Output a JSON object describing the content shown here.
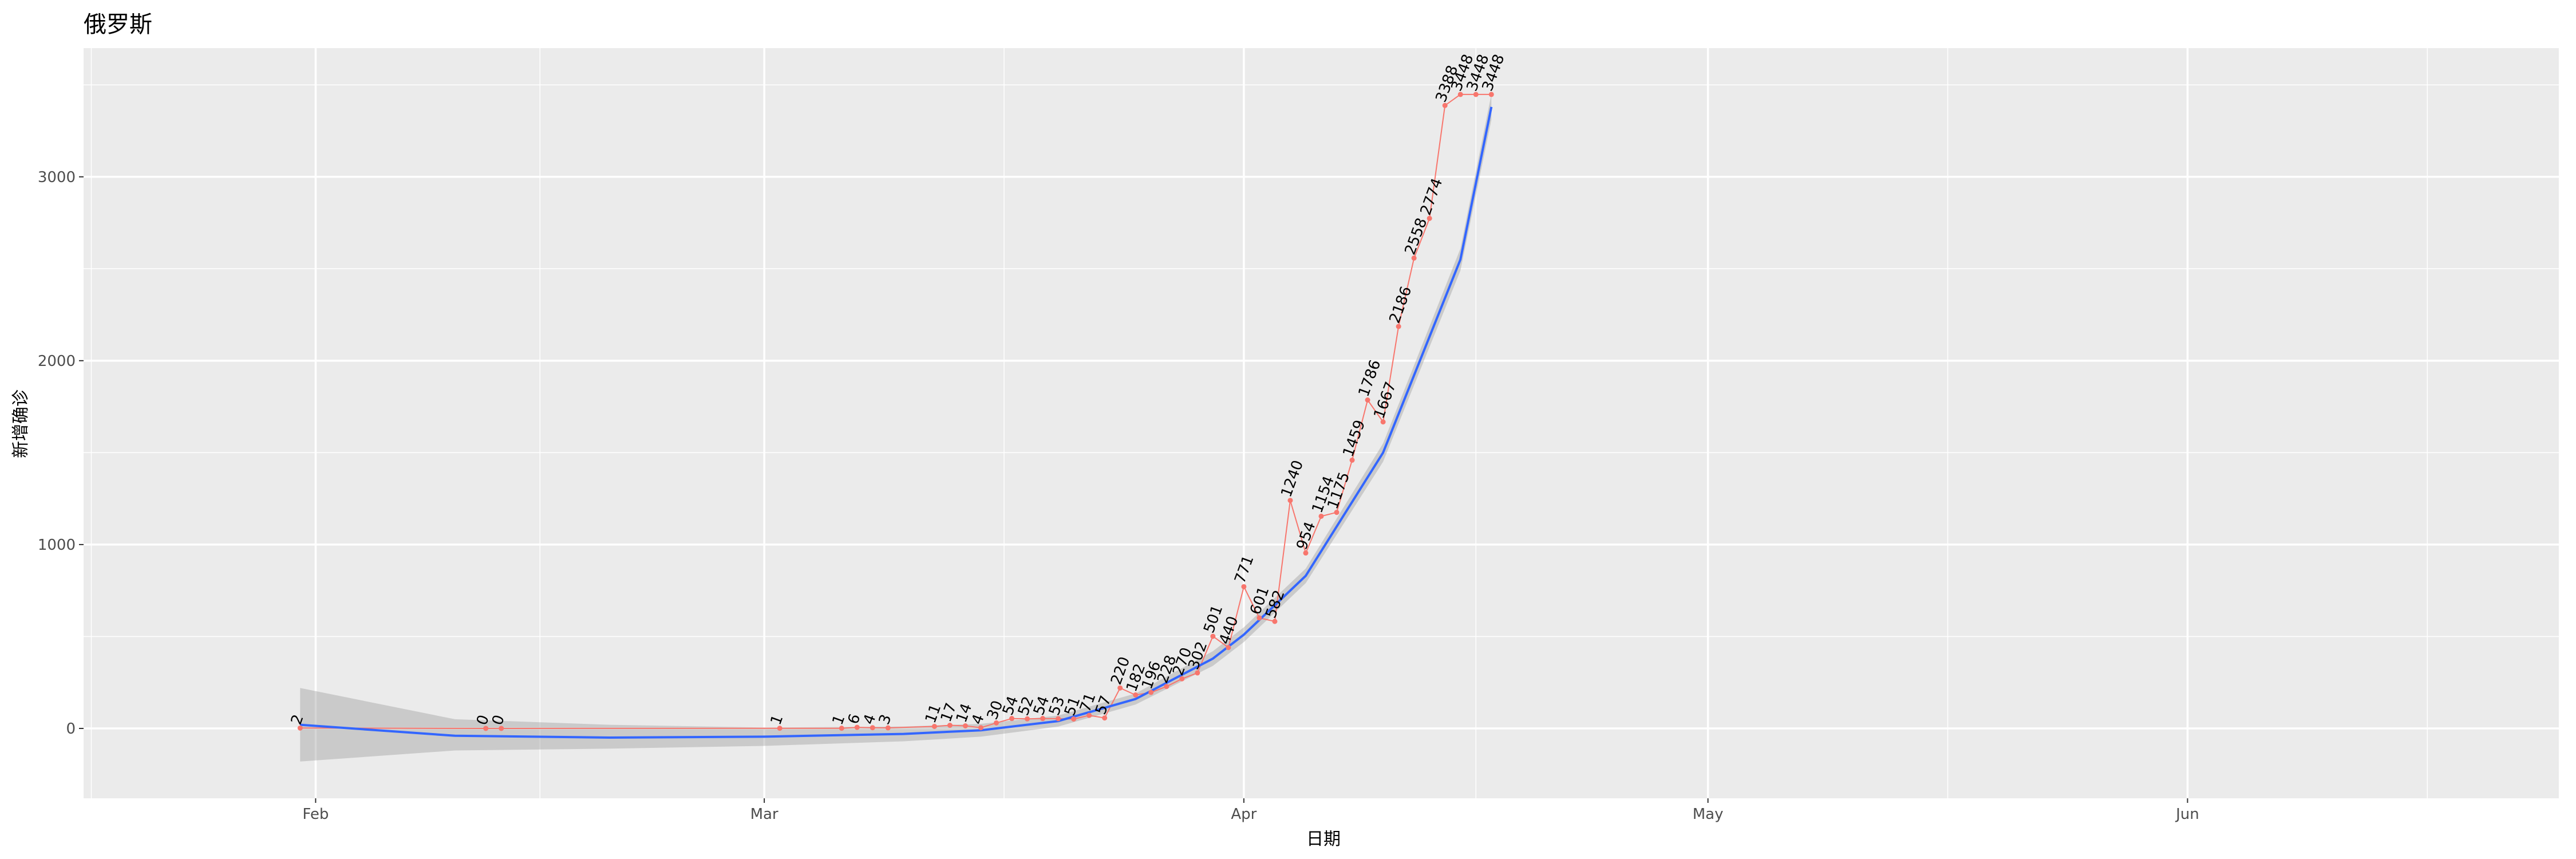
{
  "chart_data": {
    "type": "line",
    "title": "俄罗斯",
    "xlabel": "日期",
    "ylabel": "新增确诊",
    "x_ticks": [
      {
        "date": "2020-02-01",
        "label": "Feb"
      },
      {
        "date": "2020-03-01",
        "label": "Mar"
      },
      {
        "date": "2020-04-01",
        "label": "Apr"
      },
      {
        "date": "2020-05-01",
        "label": "May"
      },
      {
        "date": "2020-06-01",
        "label": "Jun"
      }
    ],
    "y_ticks": [
      0,
      1000,
      2000,
      3000
    ],
    "xlim": [
      "2020-01-17",
      "2020-06-25"
    ],
    "ylim": [
      -380,
      3700
    ],
    "grid": true,
    "series": [
      {
        "color": "#F8766D",
        "x": [
          "2020-01-31",
          "2020-02-12",
          "2020-02-13",
          "2020-03-02",
          "2020-03-06",
          "2020-03-07",
          "2020-03-08",
          "2020-03-09",
          "2020-03-12",
          "2020-03-13",
          "2020-03-14",
          "2020-03-15",
          "2020-03-16",
          "2020-03-17",
          "2020-03-18",
          "2020-03-19",
          "2020-03-20",
          "2020-03-21",
          "2020-03-22",
          "2020-03-23",
          "2020-03-24",
          "2020-03-25",
          "2020-03-26",
          "2020-03-27",
          "2020-03-28",
          "2020-03-29",
          "2020-03-30",
          "2020-03-31",
          "2020-04-01",
          "2020-04-02",
          "2020-04-03",
          "2020-04-04",
          "2020-04-05",
          "2020-04-06",
          "2020-04-07",
          "2020-04-08",
          "2020-04-09",
          "2020-04-10",
          "2020-04-11",
          "2020-04-12",
          "2020-04-13",
          "2020-04-14",
          "2020-04-15",
          "2020-04-16",
          "2020-04-17"
        ],
        "y": [
          2,
          0,
          0,
          1,
          1,
          6,
          4,
          3,
          11,
          17,
          14,
          4,
          30,
          54,
          52,
          54,
          53,
          51,
          71,
          57,
          220,
          182,
          196,
          228,
          270,
          302,
          501,
          440,
          771,
          601,
          582,
          1240,
          954,
          1154,
          1175,
          1459,
          1786,
          1667,
          2186,
          2558,
          2774,
          3388,
          3448,
          3448,
          3448
        ],
        "labels": [
          "2",
          "0",
          "0",
          "1",
          "1",
          "6",
          "4",
          "3",
          "11",
          "17",
          "14",
          "4",
          "30",
          "54",
          "52",
          "54",
          "53",
          "51",
          "71",
          "57",
          "220",
          "182",
          "196",
          "228",
          "270",
          "302",
          "501",
          "440",
          "771",
          "601",
          "582",
          "1240",
          "954",
          "1154",
          "1175",
          "1459",
          "1786",
          "1667",
          "2186",
          "2558",
          "2774",
          "3388",
          "3448",
          "3448",
          "3448"
        ]
      },
      {
        "name": "smooth",
        "color": "#3366FF",
        "ci_color": "#999999",
        "x": [
          "2020-01-31",
          "2020-02-10",
          "2020-02-20",
          "2020-03-01",
          "2020-03-10",
          "2020-03-15",
          "2020-03-20",
          "2020-03-25",
          "2020-03-30",
          "2020-04-01",
          "2020-04-05",
          "2020-04-10",
          "2020-04-15",
          "2020-04-17"
        ],
        "y": [
          20,
          -40,
          -50,
          -45,
          -30,
          -10,
          40,
          160,
          380,
          510,
          830,
          1500,
          2550,
          3380
        ],
        "ci_low": [
          -180,
          -120,
          -110,
          -95,
          -70,
          -45,
          10,
          130,
          340,
          470,
          790,
          1450,
          2490,
          3310
        ],
        "ci_high": [
          220,
          50,
          20,
          5,
          10,
          25,
          70,
          190,
          420,
          550,
          870,
          1550,
          2610,
          3450
        ]
      }
    ]
  }
}
